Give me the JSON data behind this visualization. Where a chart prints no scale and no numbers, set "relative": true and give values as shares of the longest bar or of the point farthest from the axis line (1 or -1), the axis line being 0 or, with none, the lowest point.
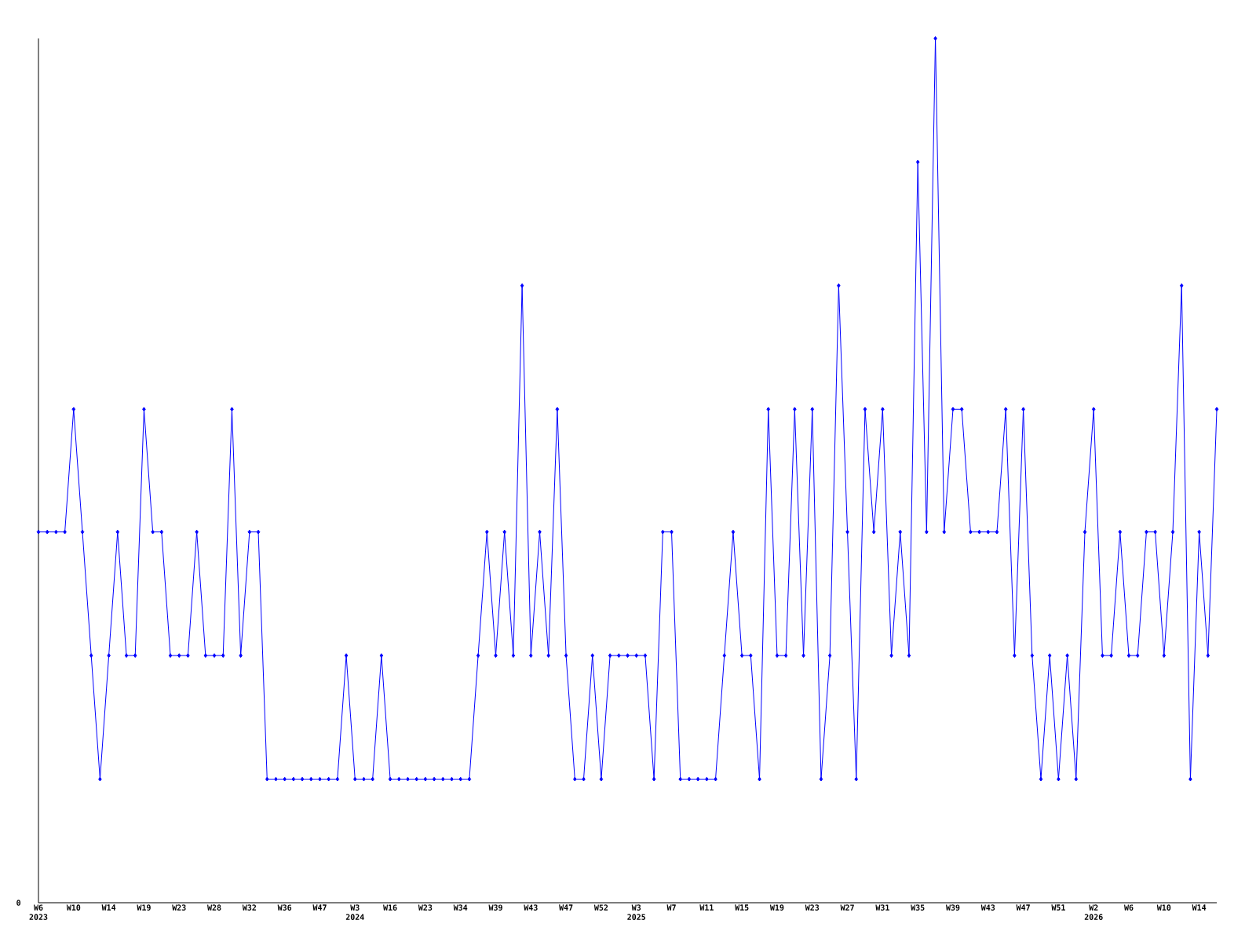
{
  "chart_data": {
    "type": "line",
    "relative": true,
    "color": "#0000ff",
    "marker": "diamond",
    "annotations": [
      "0"
    ],
    "categories": [
      "W6 2023",
      null,
      null,
      null,
      "W10",
      null,
      null,
      null,
      "W14",
      null,
      null,
      null,
      "W19",
      null,
      null,
      null,
      "W23",
      null,
      null,
      null,
      "W28",
      null,
      null,
      null,
      "W32",
      null,
      null,
      null,
      "W36",
      null,
      null,
      null,
      "W47",
      null,
      null,
      null,
      "W3 2024",
      null,
      null,
      null,
      "W16",
      null,
      null,
      null,
      "W23",
      null,
      null,
      null,
      "W34",
      null,
      null,
      null,
      "W39",
      null,
      null,
      null,
      "W43",
      null,
      null,
      null,
      "W47",
      null,
      null,
      null,
      "W52",
      null,
      null,
      null,
      "W3 2025",
      null,
      null,
      null,
      "W7",
      null,
      null,
      null,
      "W11",
      null,
      null,
      null,
      "W15",
      null,
      null,
      null,
      "W19",
      null,
      null,
      null,
      "W23",
      null,
      null,
      null,
      "W27",
      null,
      null,
      null,
      "W31",
      null,
      null,
      null,
      "W35",
      null,
      null,
      null,
      "W39",
      null,
      null,
      null,
      "W43",
      null,
      null,
      null,
      "W47",
      null,
      null,
      null,
      "W51",
      null,
      null,
      null,
      "W2 2026",
      null,
      null,
      null,
      "W6",
      null,
      null,
      null,
      "W10",
      null,
      null,
      null,
      "W14",
      null,
      null
    ],
    "values": [
      0.429,
      0.429,
      0.429,
      0.429,
      0.571,
      0.429,
      0.286,
      0.143,
      0.286,
      0.429,
      0.286,
      0.286,
      0.571,
      0.429,
      0.429,
      0.286,
      0.286,
      0.286,
      0.429,
      0.286,
      0.286,
      0.286,
      0.571,
      0.286,
      0.429,
      0.429,
      0.143,
      0.143,
      0.143,
      0.143,
      0.143,
      0.143,
      0.143,
      0.143,
      0.143,
      0.286,
      0.143,
      0.143,
      0.143,
      0.286,
      0.143,
      0.143,
      0.143,
      0.143,
      0.143,
      0.143,
      0.143,
      0.143,
      0.143,
      0.143,
      0.286,
      0.429,
      0.286,
      0.429,
      0.286,
      0.714,
      0.286,
      0.429,
      0.286,
      0.571,
      0.286,
      0.143,
      0.143,
      0.286,
      0.143,
      0.286,
      0.286,
      0.286,
      0.286,
      0.286,
      0.143,
      0.429,
      0.429,
      0.143,
      0.143,
      0.143,
      0.143,
      0.143,
      0.286,
      0.429,
      0.286,
      0.286,
      0.143,
      0.571,
      0.286,
      0.286,
      0.571,
      0.286,
      0.571,
      0.143,
      0.286,
      0.714,
      0.429,
      0.143,
      0.571,
      0.429,
      0.571,
      0.286,
      0.429,
      0.286,
      0.857,
      0.429,
      1,
      0.429,
      0.571,
      0.571,
      0.429,
      0.429,
      0.429,
      0.429,
      0.571,
      0.286,
      0.571,
      0.286,
      0.143,
      0.286,
      0.143,
      0.286,
      0.143,
      0.429,
      0.571,
      0.286,
      0.286,
      0.429,
      0.286,
      0.286,
      0.429,
      0.429,
      0.286,
      0.429,
      0.714,
      0.143,
      0.429,
      0.286,
      0.571
    ]
  }
}
